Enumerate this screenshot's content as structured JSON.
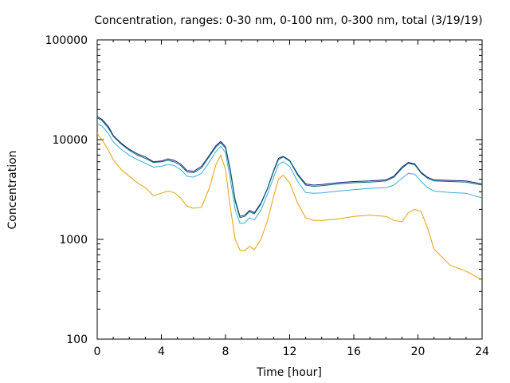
{
  "chart_data": {
    "type": "line",
    "title": "Concentration, ranges: 0-30 nm, 0-100 nm, 0-300 nm, total (3/19/19)",
    "xlabel": "Time [hour]",
    "ylabel": "Concentration",
    "xlim": [
      0,
      24
    ],
    "ylim": [
      100,
      100000
    ],
    "yscale": "log",
    "grid": false,
    "legend": "none",
    "x_ticks": [
      0,
      4,
      8,
      12,
      16,
      20,
      24
    ],
    "x_tick_labels": [
      "0",
      "4",
      "8",
      "12",
      "16",
      "20",
      "24"
    ],
    "y_ticks": [
      100,
      1000,
      10000,
      100000
    ],
    "y_tick_labels": [
      "100",
      "1000",
      "10000",
      "100000"
    ],
    "x": [
      0,
      0.3,
      0.7,
      1,
      1.5,
      2,
      2.5,
      3,
      3.5,
      4,
      4.4,
      4.8,
      5.2,
      5.6,
      6,
      6.5,
      7,
      7.4,
      7.7,
      8,
      8.3,
      8.6,
      8.9,
      9.2,
      9.5,
      9.8,
      10.2,
      10.6,
      11,
      11.3,
      11.6,
      12,
      12.5,
      13,
      13.5,
      14,
      15,
      16,
      17,
      18,
      18.5,
      19,
      19.4,
      19.8,
      20.2,
      20.6,
      21,
      22,
      23,
      24
    ],
    "series": [
      {
        "color": "#1a1a80",
        "values": [
          17000,
          16000,
          13500,
          11000,
          9200,
          8000,
          7200,
          6700,
          6000,
          6100,
          6400,
          6200,
          5700,
          4900,
          4800,
          5400,
          7000,
          8700,
          9600,
          8500,
          5000,
          2500,
          1700,
          1750,
          1950,
          1850,
          2300,
          3200,
          4900,
          6500,
          6800,
          6200,
          4500,
          3600,
          3500,
          3550,
          3700,
          3800,
          3850,
          3950,
          4300,
          5300,
          5900,
          5700,
          4700,
          4200,
          3950,
          3900,
          3850,
          3600
        ]
      },
      {
        "color": "#007070",
        "values": [
          16500,
          15600,
          13000,
          10800,
          9000,
          7800,
          7000,
          6500,
          5900,
          6000,
          6200,
          6000,
          5500,
          4750,
          4650,
          5200,
          6800,
          8400,
          9300,
          8200,
          4800,
          2400,
          1650,
          1700,
          1900,
          1800,
          2250,
          3150,
          4800,
          6300,
          6700,
          6100,
          4400,
          3500,
          3400,
          3450,
          3600,
          3700,
          3750,
          3850,
          4200,
          5150,
          5800,
          5600,
          4600,
          4100,
          3850,
          3800,
          3750,
          3500
        ]
      },
      {
        "color": "#3fa9d4",
        "values": [
          14500,
          13700,
          11500,
          9500,
          8000,
          7000,
          6300,
          5800,
          5300,
          5400,
          5650,
          5500,
          5000,
          4300,
          4200,
          4600,
          6000,
          7600,
          8600,
          7400,
          4000,
          2000,
          1450,
          1460,
          1650,
          1570,
          1950,
          2800,
          4200,
          5600,
          6000,
          5400,
          3800,
          2950,
          2900,
          2920,
          3050,
          3150,
          3250,
          3300,
          3500,
          4100,
          4600,
          4500,
          3800,
          3300,
          3050,
          2950,
          2900,
          2600
        ]
      },
      {
        "color": "#e69f00",
        "values": [
          11500,
          10000,
          7800,
          6300,
          5000,
          4300,
          3700,
          3300,
          2750,
          2900,
          3050,
          2950,
          2600,
          2150,
          2050,
          2100,
          3300,
          5600,
          7000,
          5000,
          2100,
          1000,
          780,
          770,
          850,
          790,
          1000,
          1500,
          2700,
          4000,
          4400,
          3700,
          2300,
          1650,
          1550,
          1550,
          1600,
          1700,
          1750,
          1700,
          1550,
          1500,
          1850,
          2000,
          1900,
          1300,
          800,
          550,
          480,
          390
        ]
      }
    ]
  }
}
